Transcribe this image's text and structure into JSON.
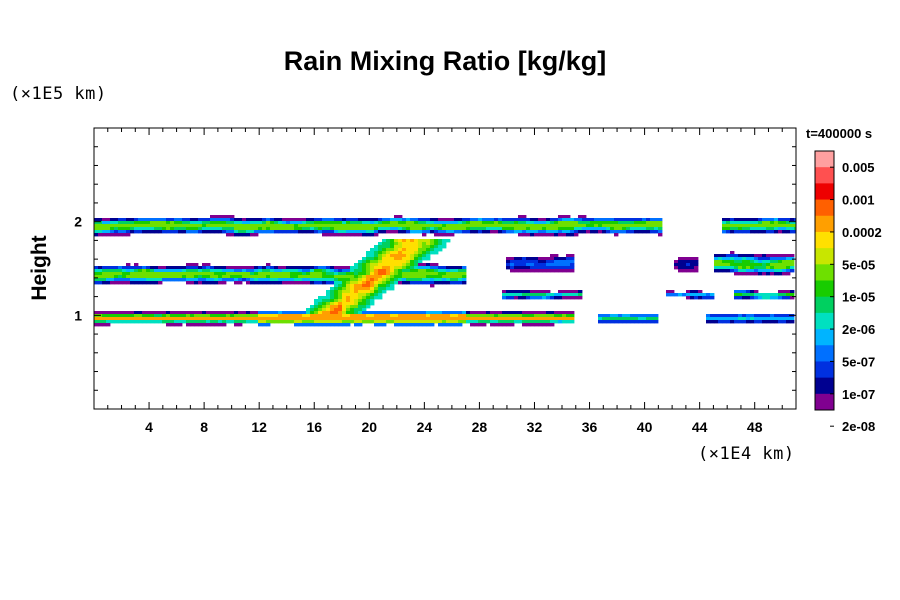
{
  "chart_data": {
    "type": "heatmap",
    "title": "Rain Mixing Ratio [kg/kg]",
    "xunit": "(×1E4 km)",
    "yunit": "(×1E5 km)",
    "ylabel": "Height",
    "time_label": "t=400000 s",
    "xlim": [
      0,
      51
    ],
    "ylim": [
      0,
      3
    ],
    "xticks": [
      "4",
      "8",
      "12",
      "16",
      "20",
      "24",
      "28",
      "32",
      "36",
      "40",
      "44",
      "48"
    ],
    "yticks": [
      "1",
      "2"
    ],
    "colorbar": {
      "labels": [
        "0.005",
        "0.001",
        "0.0002",
        "5e-05",
        "1e-05",
        "2e-06",
        "5e-07",
        "1e-07",
        "2e-08"
      ],
      "colors": [
        "#ffa0a0",
        "#ff5050",
        "#ee0000",
        "#ff6000",
        "#ff9f00",
        "#ffe000",
        "#c8e600",
        "#6ee000",
        "#18cc00",
        "#00d060",
        "#00e0c0",
        "#00b4ff",
        "#0070ff",
        "#0030e0",
        "#000090",
        "#800090"
      ]
    },
    "features": [
      {
        "name": "upper layer",
        "height": 2.0,
        "x_range": [
          0,
          51
        ],
        "max_value": "1e-05"
      },
      {
        "name": "middle layer",
        "height": 1.5,
        "x_range": [
          0,
          51
        ],
        "max_value": "1e-05"
      },
      {
        "name": "lower layer",
        "height": 1.0,
        "x_range": [
          0,
          35
        ],
        "max_value": "0.001"
      },
      {
        "name": "convective core",
        "x_range": [
          16,
          25
        ],
        "height_range": [
          1.0,
          2.0
        ],
        "max_value": "0.001"
      }
    ]
  }
}
